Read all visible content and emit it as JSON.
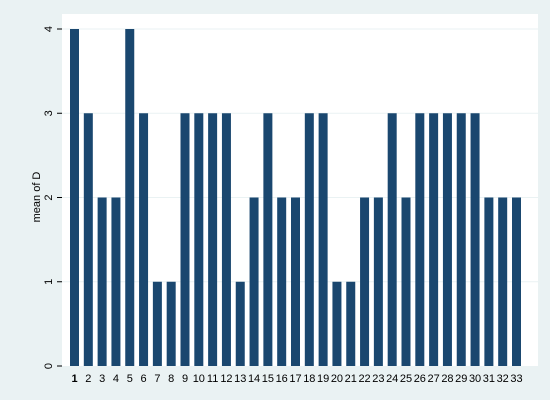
{
  "chart_data": {
    "type": "bar",
    "title": "",
    "xlabel": "",
    "ylabel": "mean of D",
    "categories": [
      "1",
      "2",
      "3",
      "4",
      "5",
      "6",
      "7",
      "8",
      "9",
      "10",
      "11",
      "12",
      "13",
      "14",
      "15",
      "16",
      "17",
      "18",
      "19",
      "20",
      "21",
      "22",
      "23",
      "24",
      "25",
      "26",
      "27",
      "28",
      "29",
      "30",
      "31",
      "32",
      "33"
    ],
    "values": [
      4,
      3,
      2,
      2,
      4,
      3,
      1,
      1,
      3,
      3,
      3,
      3,
      1,
      2,
      3,
      2,
      2,
      3,
      3,
      1,
      1,
      2,
      2,
      3,
      2,
      3,
      3,
      3,
      3,
      3,
      2,
      2,
      2
    ],
    "ylim": [
      0,
      4
    ],
    "yticks": [
      0,
      1,
      2,
      3,
      4
    ],
    "grid": true,
    "legend": "none",
    "colors": {
      "bar": "#1a476f",
      "plot_background": "#ffffff",
      "outer_background": "#eaf2f3",
      "grid": "#eaf2f3"
    }
  }
}
